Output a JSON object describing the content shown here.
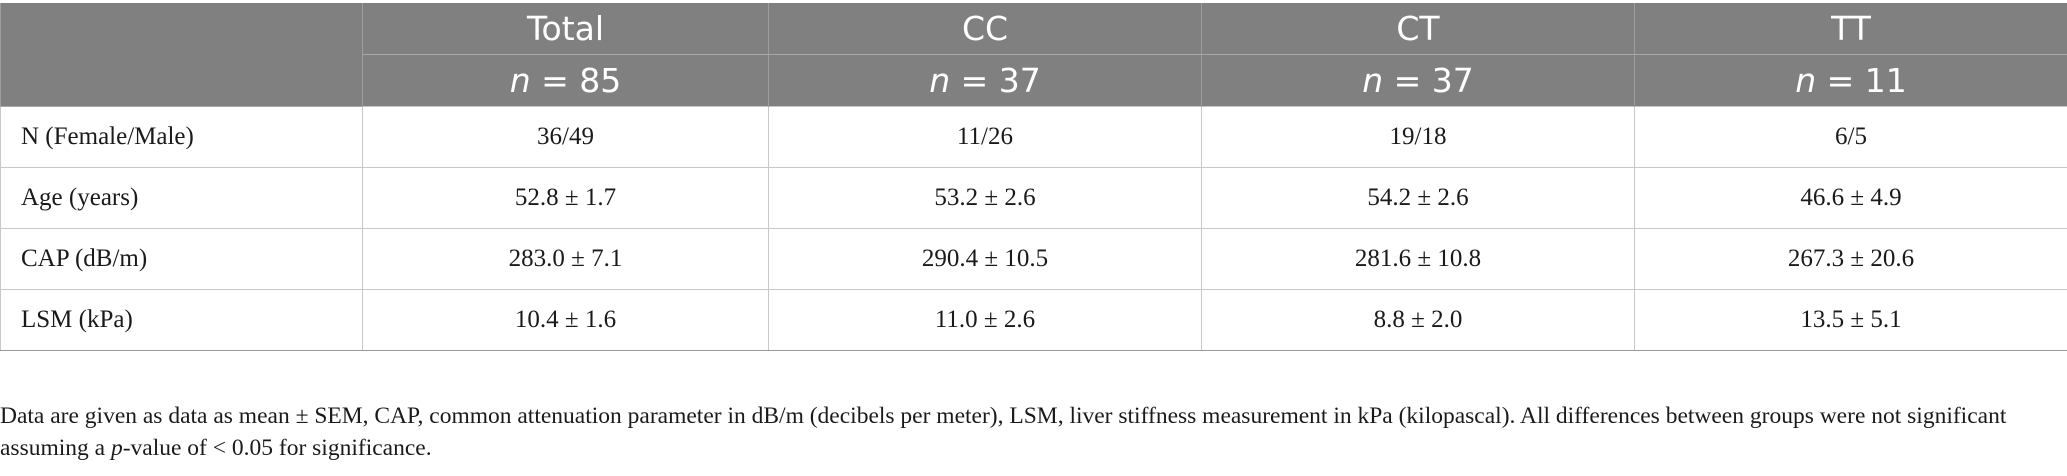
{
  "table": {
    "header_groups": [
      "Total",
      "CC",
      "CT",
      "TT"
    ],
    "header_counts": [
      {
        "label": "n",
        "eq": " = ",
        "value": "85"
      },
      {
        "label": "n",
        "eq": " = ",
        "value": "37"
      },
      {
        "label": "n",
        "eq": " = ",
        "value": "37"
      },
      {
        "label": "n",
        "eq": " = ",
        "value": "11"
      }
    ],
    "rows": [
      {
        "label": "N (Female/Male)",
        "cells": [
          "36/49",
          "11/26",
          "19/18",
          "6/5"
        ]
      },
      {
        "label": "Age (years)",
        "cells": [
          "52.8 ± 1.7",
          "53.2 ± 2.6",
          "54.2 ± 2.6",
          "46.6 ± 4.9"
        ]
      },
      {
        "label": "CAP (dB/m)",
        "cells": [
          "283.0 ± 7.1",
          "290.4 ± 10.5",
          "281.6 ± 10.8",
          "267.3 ± 20.6"
        ]
      },
      {
        "label": "LSM (kPa)",
        "cells": [
          "10.4 ± 1.6",
          "11.0 ± 2.6",
          "8.8 ± 2.0",
          "13.5 ± 5.1"
        ]
      }
    ]
  },
  "footnote": {
    "part1": "Data are given as data as mean ± SEM, CAP, common attenuation parameter in dB/m (decibels per meter), LSM, liver stiffness measurement in kPa (kilopascal). All differences between groups were not significant assuming a ",
    "pvalue_italic": "p",
    "part2": "-value of < 0.05 for significance."
  },
  "colors": {
    "header_bg": "#808080",
    "header_text": "#ffffff",
    "body_text": "#1a1a1a",
    "grid": "#c8c8c8"
  }
}
